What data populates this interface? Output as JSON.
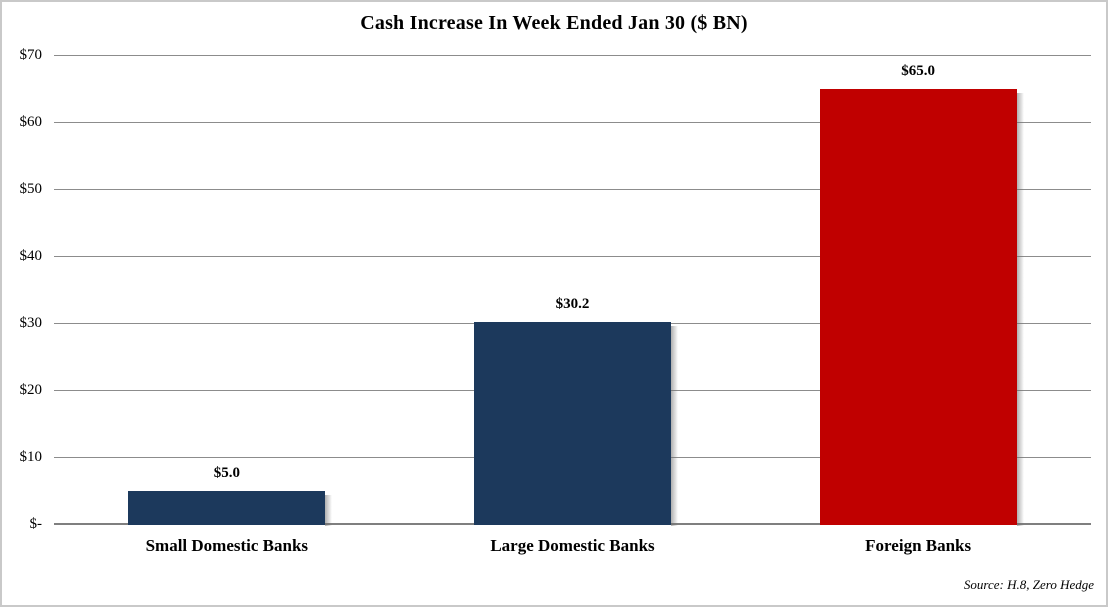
{
  "chart_data": {
    "type": "bar",
    "title": "Cash Increase In Week Ended Jan 30 ($ BN)",
    "categories": [
      "Small Domestic Banks",
      "Large Domestic Banks",
      "Foreign Banks"
    ],
    "values": [
      5.0,
      30.2,
      65.0
    ],
    "value_labels": [
      "$5.0",
      "$30.2",
      "$65.0"
    ],
    "bar_colors": [
      "#1c395c",
      "#1c395c",
      "#c00000"
    ],
    "ylim": [
      0,
      70
    ],
    "ytick_interval": 10,
    "ytick_labels": [
      "$-",
      "$10",
      "$20",
      "$30",
      "$40",
      "$50",
      "$60",
      "$70"
    ],
    "xlabel": "",
    "ylabel": "",
    "grid": true,
    "legend": "none",
    "source_note": "Source: H.8, Zero Hedge"
  },
  "colors": {
    "navy": "#1c395c",
    "red": "#c00000",
    "gridline": "#8c8c8c",
    "axis_line": "#7f7f7f",
    "border": "#c9c9c9",
    "background": "#ffffff",
    "text": "#000000"
  }
}
